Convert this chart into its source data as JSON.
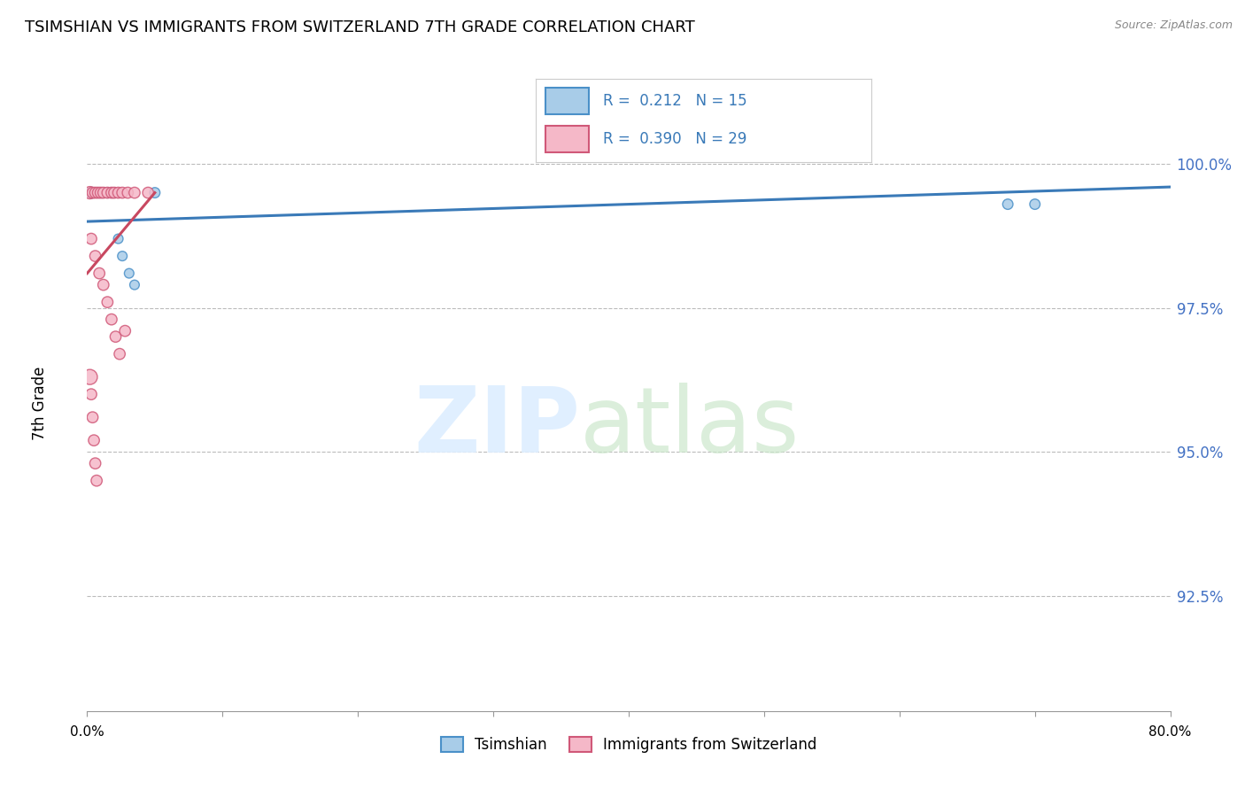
{
  "title": "TSIMSHIAN VS IMMIGRANTS FROM SWITZERLAND 7TH GRADE CORRELATION CHART",
  "source": "Source: ZipAtlas.com",
  "ylabel": "7th Grade",
  "x_min": 0.0,
  "x_max": 80.0,
  "y_min": 90.5,
  "y_max": 101.2,
  "y_ticks": [
    92.5,
    95.0,
    97.5,
    100.0
  ],
  "blue_R": 0.212,
  "blue_N": 15,
  "pink_R": 0.39,
  "pink_N": 29,
  "blue_color": "#a8cce8",
  "blue_edge": "#4a90c8",
  "pink_color": "#f5b8c8",
  "pink_edge": "#d05878",
  "blue_line": "#3a7ab8",
  "pink_line": "#c84860",
  "legend_blue": "Tsimshian",
  "legend_pink": "Immigrants from Switzerland",
  "blue_x": [
    0.3,
    0.5,
    0.8,
    1.0,
    1.2,
    1.5,
    1.8,
    2.0,
    2.3,
    2.6,
    3.1,
    3.5,
    5.0,
    68.0,
    70.0
  ],
  "blue_y": [
    99.5,
    99.5,
    99.5,
    99.5,
    99.5,
    99.5,
    99.5,
    99.5,
    98.7,
    98.4,
    98.1,
    97.9,
    99.5,
    99.3,
    99.3
  ],
  "blue_s": [
    80,
    70,
    70,
    70,
    70,
    70,
    70,
    70,
    60,
    60,
    60,
    60,
    70,
    70,
    70
  ],
  "pink_x": [
    0.2,
    0.4,
    0.6,
    0.8,
    1.0,
    1.2,
    1.5,
    1.8,
    2.0,
    2.3,
    2.6,
    3.0,
    3.5,
    4.5,
    0.3,
    0.6,
    0.9,
    1.2,
    1.5,
    1.8,
    2.1,
    2.4,
    0.2,
    0.3,
    0.4,
    0.5,
    0.6,
    0.7,
    2.8
  ],
  "pink_y": [
    99.5,
    99.5,
    99.5,
    99.5,
    99.5,
    99.5,
    99.5,
    99.5,
    99.5,
    99.5,
    99.5,
    99.5,
    99.5,
    99.5,
    98.7,
    98.4,
    98.1,
    97.9,
    97.6,
    97.3,
    97.0,
    96.7,
    96.3,
    96.0,
    95.6,
    95.2,
    94.8,
    94.5,
    97.1
  ],
  "pink_s": [
    100,
    80,
    80,
    80,
    80,
    80,
    80,
    80,
    80,
    80,
    80,
    80,
    80,
    80,
    80,
    80,
    80,
    80,
    80,
    80,
    80,
    80,
    150,
    80,
    80,
    80,
    80,
    80,
    80
  ],
  "blue_trendline_x": [
    0.0,
    80.0
  ],
  "blue_trendline_y": [
    99.0,
    99.6
  ],
  "pink_trendline_x": [
    0.0,
    5.0
  ],
  "pink_trendline_y": [
    98.1,
    99.5
  ]
}
